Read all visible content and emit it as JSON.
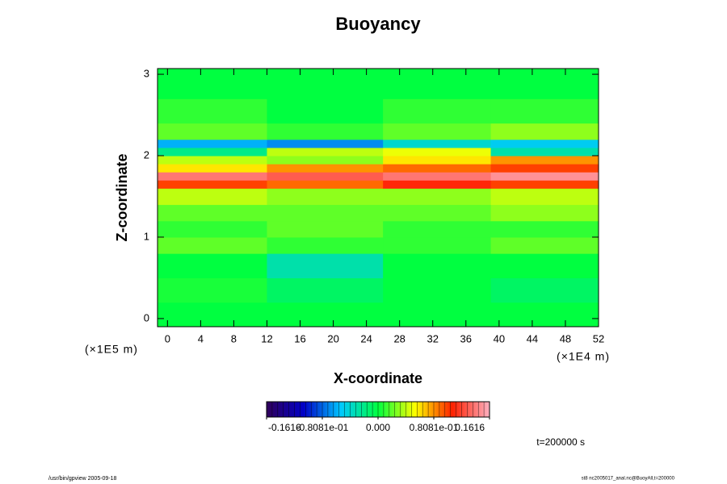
{
  "chart_data": {
    "type": "heatmap",
    "title": "Buoyancy",
    "x_label": "X-coordinate",
    "y_label": "Z-coordinate",
    "x_unit": "(×1E4 m)",
    "y_unit": "(×1E5 m)",
    "time_label": "t=200000 s",
    "footer_left": "/usr/bin/gpview 2005-09-18",
    "footer_right": "st8 nc2005017_anal.nc@BuoyAll,t=200000",
    "x_edges": [
      -1.2,
      12,
      26,
      39,
      52
    ],
    "y_edges": [
      -0.1,
      0.2,
      0.5,
      0.8,
      1.0,
      1.2,
      1.4,
      1.6,
      1.7,
      1.8,
      1.9,
      2.0,
      2.1,
      2.2,
      2.4,
      2.7,
      3.07
    ],
    "values": [
      [
        0,
        0,
        0,
        0
      ],
      [
        0.005,
        -0.01,
        0,
        -0.01
      ],
      [
        0,
        -0.03,
        0,
        0
      ],
      [
        0.02,
        0.01,
        0.01,
        0.02
      ],
      [
        0.01,
        0.02,
        0.01,
        0.01
      ],
      [
        0.02,
        0.02,
        0.02,
        0.03
      ],
      [
        0.04,
        0.03,
        0.03,
        0.04
      ],
      [
        0.1,
        0.09,
        0.11,
        0.1
      ],
      [
        0.14,
        0.13,
        0.14,
        0.15
      ],
      [
        0.06,
        0.08,
        0.09,
        0.1
      ],
      [
        0.04,
        0.03,
        0.06,
        0.08
      ],
      [
        -0.02,
        0.04,
        0.05,
        -0.03
      ],
      [
        -0.06,
        -0.07,
        -0.04,
        -0.05
      ],
      [
        0.02,
        0.01,
        0.02,
        0.03
      ],
      [
        0.01,
        0,
        0.01,
        0.01
      ],
      [
        0,
        0,
        0,
        0
      ]
    ],
    "xlim": [
      -1.2,
      52
    ],
    "ylim": [
      -0.1,
      3.07
    ],
    "xticks": [
      0,
      4,
      8,
      12,
      16,
      20,
      24,
      28,
      32,
      36,
      40,
      44,
      48,
      52
    ],
    "yticks": [
      0,
      1,
      2,
      3
    ],
    "clim": [
      -0.1616,
      0.1616
    ],
    "colorscale": [
      "#30005a",
      "#0000c8",
      "#00c8ff",
      "#00ff40",
      "#ffff00",
      "#ff2000",
      "#ffb0c0"
    ],
    "cticks": [
      {
        "value": -0.1616,
        "label": "-0.1616"
      },
      {
        "value": -0.08081,
        "label": "-0.8081e-01"
      },
      {
        "value": 0,
        "label": "0.000"
      },
      {
        "value": 0.08081,
        "label": "0.8081e-01"
      },
      {
        "value": 0.1616,
        "label": "0.1616"
      }
    ]
  }
}
